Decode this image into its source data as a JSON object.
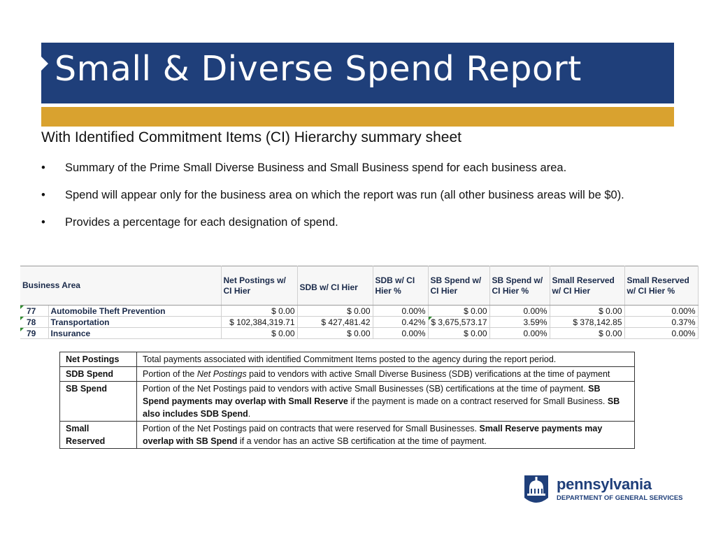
{
  "slide": {
    "title": "Small & Diverse Spend Report",
    "subtitle": "With Identified Commitment Items (CI) Hierarchy summary sheet",
    "bullet_char": "•",
    "bullets": [
      "Summary of the Prime Small Diverse Business and Small Business spend for each business area.",
      "Spend will appear only for the business area on which the report was run (all other business areas will be $0).",
      "Provides a percentage for each designation of spend."
    ]
  },
  "sheet": {
    "headers": {
      "business_area": "Business Area",
      "net_postings": "Net Postings w/ CI Hier",
      "sdb": "SDB w/ CI Hier",
      "sdb_pct": "SDB w/ CI Hier %",
      "sb": "SB Spend w/ CI Hier",
      "sb_pct": "SB Spend w/ CI Hier %",
      "small_reserved": "Small Reserved w/ CI Hier",
      "small_reserved_pct": "Small Reserved w/ CI Hier %"
    },
    "rows": [
      {
        "code": "77",
        "name": "Automobile Theft Prevention",
        "net": "$ 0.00",
        "sdb": "$ 0.00",
        "sdb_pct": "0.00%",
        "sb": "$ 0.00",
        "sb_pct": "0.00%",
        "res": "$ 0.00",
        "res_pct": "0.00%"
      },
      {
        "code": "78",
        "name": "Transportation",
        "net": "$ 102,384,319.71",
        "sdb": "$ 427,481.42",
        "sdb_pct": "0.42%",
        "sb": "$ 3,675,573.17",
        "sb_pct": "3.59%",
        "res": "$ 378,142.85",
        "res_pct": "0.37%"
      },
      {
        "code": "79",
        "name": "Insurance",
        "net": "$ 0.00",
        "sdb": "$ 0.00",
        "sdb_pct": "0.00%",
        "sb": "$ 0.00",
        "sb_pct": "0.00%",
        "res": "$ 0.00",
        "res_pct": "0.00%"
      }
    ]
  },
  "definitions": {
    "net_postings": {
      "term": "Net Postings",
      "text": "Total payments associated with identified Commitment Items posted to the agency during the report period."
    },
    "sdb_spend": {
      "term": "SDB Spend",
      "text_a": "Portion of the ",
      "text_italic": "Net Postings",
      "text_b": " paid to vendors with active Small Diverse Business (SDB) verifications at the time of payment"
    },
    "sb_spend": {
      "term": "SB Spend",
      "text_a": "Portion of the Net Postings paid to vendors with active Small Businesses (SB) certifications at the time of payment. ",
      "bold_a": "SB Spend payments may overlap with Small Reserve",
      "text_b": " if  the payment is made on a contract reserved for Small Business. ",
      "bold_b": "SB also includes SDB Spend",
      "text_c": "."
    },
    "small_reserved": {
      "term": "Small Reserved",
      "text_a": "Portion of the Net Postings paid on contracts that were reserved for Small Businesses. ",
      "bold_a": "Small Reserve payments may overlap with SB Spend",
      "text_b": " if a vendor has an active SB certification at the time of payment."
    }
  },
  "logo": {
    "word": "pennsylvania",
    "dept": "DEPARTMENT OF GENERAL SERVICES",
    "color": "#1f3f7a"
  },
  "colors": {
    "title_bar": "#1f3f7a",
    "gold_bar": "#d9a22f"
  }
}
